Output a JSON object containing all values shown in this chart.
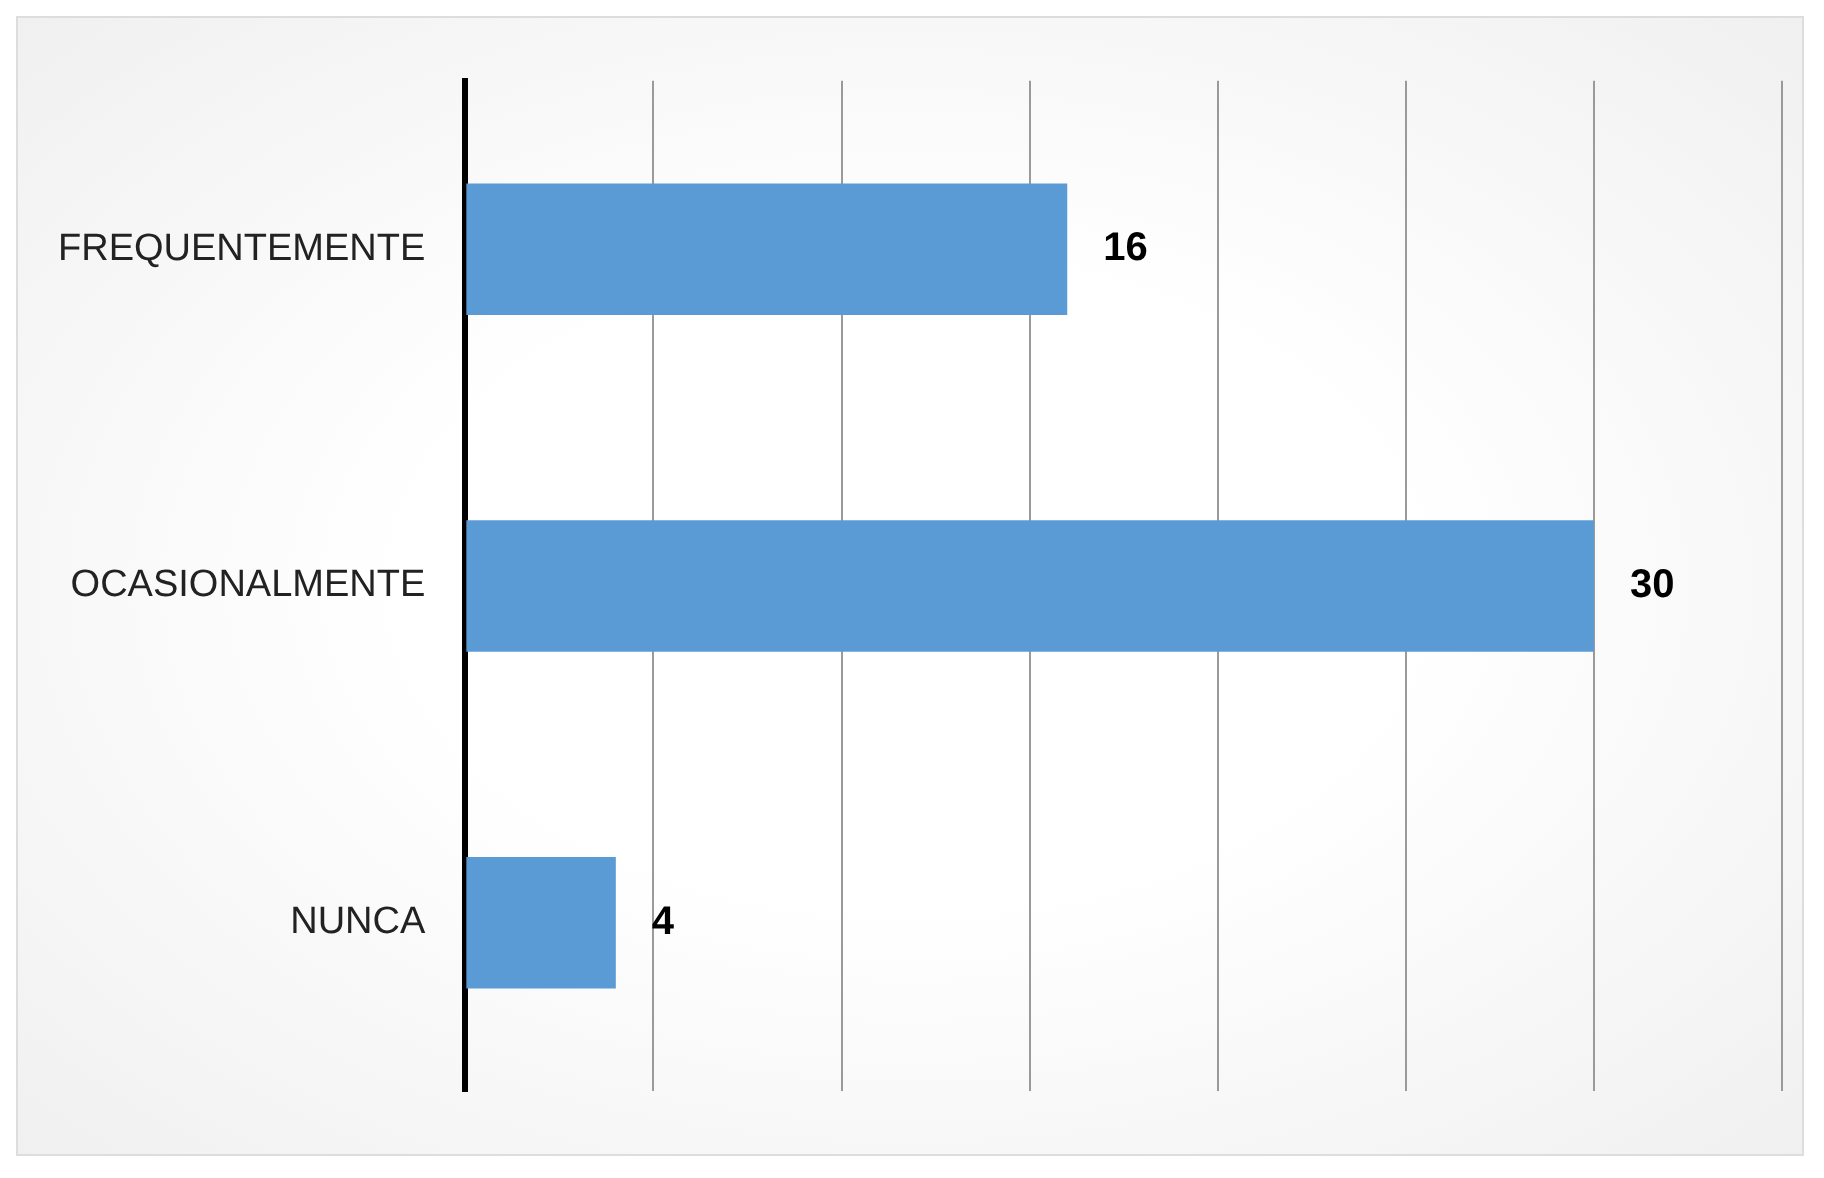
{
  "chart_data": {
    "type": "bar",
    "orientation": "horizontal",
    "categories": [
      "FREQUENTEMENTE",
      "OCASIONALMENTE",
      "NUNCA"
    ],
    "values": [
      16,
      30,
      4
    ],
    "color": "#5b9bd5",
    "xlim": [
      0,
      35
    ],
    "xticks": [
      {
        "value": 0,
        "label": null
      },
      {
        "value": 5,
        "label": null
      },
      {
        "value": 10,
        "label": null
      },
      {
        "value": 15,
        "label": null
      },
      {
        "value": 20,
        "label": null
      },
      {
        "value": 25,
        "label": null
      },
      {
        "value": 30,
        "label": null
      },
      {
        "value": 35,
        "label": null
      }
    ],
    "grid": "x",
    "tick_labels": "y",
    "data_labels": true,
    "legend": false
  }
}
